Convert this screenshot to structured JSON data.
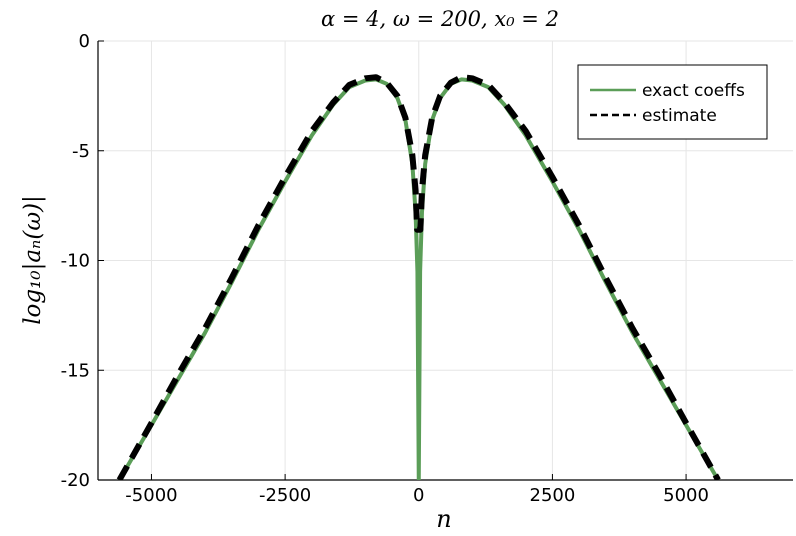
{
  "chart_data": {
    "type": "line",
    "title": "α = 4, ω = 200, x₀ = 2",
    "xlabel": "n",
    "ylabel": "log₁₀|aₙ(ω)|",
    "xlim": [
      -6000,
      7000
    ],
    "ylim": [
      -20,
      0
    ],
    "xticks": [
      -5000,
      -2500,
      0,
      2500,
      5000
    ],
    "xtick_labels": [
      "-5000",
      "-2500",
      "0",
      "2500",
      "5000"
    ],
    "yticks": [
      0,
      -5,
      -10,
      -15,
      -20
    ],
    "ytick_labels": [
      "0",
      "-5",
      "-10",
      "-15",
      "-20"
    ],
    "grid": true,
    "legend_position": "top-right",
    "series": [
      {
        "name": "exact coeffs",
        "color": "#5b9e58",
        "style": "solid",
        "x": [
          -5600,
          -5000,
          -4500,
          -4000,
          -3500,
          -3000,
          -2500,
          -2000,
          -1600,
          -1300,
          -1000,
          -800,
          -600,
          -400,
          -250,
          -120,
          -60,
          -25,
          0,
          25,
          60,
          120,
          250,
          400,
          600,
          800,
          1000,
          1300,
          1600,
          2000,
          2500,
          3000,
          3500,
          4000,
          4500,
          5000,
          5600
        ],
        "y": [
          -20,
          -17.5,
          -15.4,
          -13.3,
          -11.0,
          -8.6,
          -6.4,
          -4.3,
          -2.9,
          -2.1,
          -1.8,
          -1.75,
          -1.95,
          -2.6,
          -3.6,
          -5.6,
          -7.8,
          -10.5,
          -20,
          -10.5,
          -7.8,
          -5.6,
          -3.6,
          -2.6,
          -1.95,
          -1.75,
          -1.8,
          -2.1,
          -2.9,
          -4.3,
          -6.4,
          -8.6,
          -11.0,
          -13.3,
          -15.4,
          -17.5,
          -20
        ]
      },
      {
        "name": "estimate",
        "color": "#000000",
        "style": "dashed",
        "x": [
          -5600,
          -5000,
          -4500,
          -4000,
          -3500,
          -3000,
          -2500,
          -2000,
          -1600,
          -1300,
          -1000,
          -800,
          -600,
          -400,
          -250,
          -120,
          -60,
          -30,
          30,
          60,
          120,
          250,
          400,
          600,
          800,
          1000,
          1300,
          1600,
          2000,
          2500,
          3000,
          3500,
          4000,
          4500,
          5000,
          5600
        ],
        "y": [
          -20,
          -17.4,
          -15.2,
          -13.1,
          -10.8,
          -8.4,
          -6.2,
          -4.1,
          -2.8,
          -2.0,
          -1.7,
          -1.65,
          -1.9,
          -2.5,
          -3.5,
          -5.2,
          -6.8,
          -8.6,
          -8.6,
          -6.8,
          -5.2,
          -3.5,
          -2.5,
          -1.9,
          -1.65,
          -1.7,
          -2.0,
          -2.8,
          -4.1,
          -6.2,
          -8.4,
          -10.8,
          -13.1,
          -15.2,
          -17.4,
          -20
        ]
      }
    ]
  }
}
